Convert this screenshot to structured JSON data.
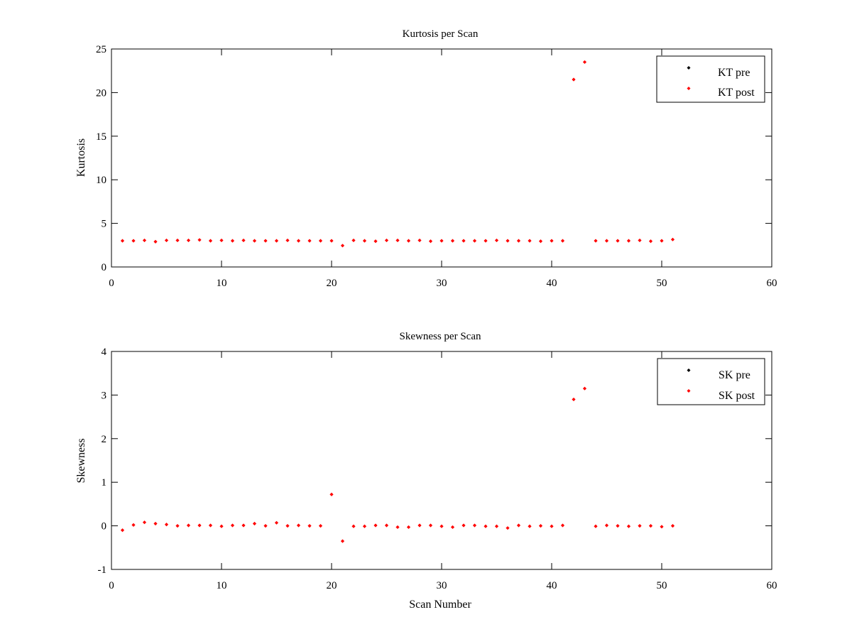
{
  "chart_data": [
    {
      "type": "scatter",
      "title": "Kurtosis per Scan",
      "xlabel": "",
      "ylabel": "Kurtosis",
      "xlim": [
        0,
        60
      ],
      "ylim": [
        0,
        25
      ],
      "xticks": [
        0,
        10,
        20,
        30,
        40,
        50,
        60
      ],
      "yticks": [
        0,
        5,
        10,
        15,
        20,
        25
      ],
      "grid": false,
      "legend_position": "top-right",
      "series": [
        {
          "name": "KT pre",
          "color": "#000000",
          "x": [],
          "y": []
        },
        {
          "name": "KT post",
          "color": "#ff0000",
          "x": [
            1,
            2,
            3,
            4,
            5,
            6,
            7,
            8,
            9,
            10,
            11,
            12,
            13,
            14,
            15,
            16,
            17,
            18,
            19,
            20,
            21,
            22,
            23,
            24,
            25,
            26,
            27,
            28,
            29,
            30,
            31,
            32,
            33,
            34,
            35,
            36,
            37,
            38,
            39,
            40,
            41,
            42,
            43,
            44,
            45,
            46,
            47,
            48,
            49,
            50,
            51
          ],
          "y": [
            3.0,
            3.0,
            3.05,
            2.9,
            3.05,
            3.05,
            3.05,
            3.1,
            3.0,
            3.05,
            3.0,
            3.05,
            3.0,
            3.0,
            3.0,
            3.05,
            3.0,
            3.0,
            3.0,
            3.0,
            2.45,
            3.05,
            3.0,
            2.95,
            3.05,
            3.05,
            3.0,
            3.05,
            2.95,
            3.0,
            3.0,
            3.0,
            3.0,
            3.0,
            3.05,
            3.0,
            3.0,
            3.0,
            2.95,
            3.0,
            3.0,
            21.5,
            23.5,
            3.0,
            3.0,
            3.0,
            3.0,
            3.05,
            2.95,
            3.0,
            3.15
          ]
        }
      ]
    },
    {
      "type": "scatter",
      "title": "Skewness per Scan",
      "xlabel": "Scan Number",
      "ylabel": "Skewness",
      "xlim": [
        0,
        60
      ],
      "ylim": [
        -1,
        4
      ],
      "xticks": [
        0,
        10,
        20,
        30,
        40,
        50,
        60
      ],
      "yticks": [
        -1,
        0,
        1,
        2,
        3,
        4
      ],
      "grid": false,
      "legend_position": "top-right",
      "series": [
        {
          "name": "SK pre",
          "color": "#000000",
          "x": [],
          "y": []
        },
        {
          "name": "SK post",
          "color": "#ff0000",
          "x": [
            1,
            2,
            3,
            4,
            5,
            6,
            7,
            8,
            9,
            10,
            11,
            12,
            13,
            14,
            15,
            16,
            17,
            18,
            19,
            20,
            21,
            22,
            23,
            24,
            25,
            26,
            27,
            28,
            29,
            30,
            31,
            32,
            33,
            34,
            35,
            36,
            37,
            38,
            39,
            40,
            41,
            42,
            43,
            44,
            45,
            46,
            47,
            48,
            49,
            50,
            51
          ],
          "y": [
            -0.1,
            0.02,
            0.08,
            0.05,
            0.03,
            0.0,
            0.01,
            0.01,
            0.01,
            -0.01,
            0.01,
            0.01,
            0.05,
            0.0,
            0.07,
            0.0,
            0.01,
            0.0,
            0.0,
            0.72,
            -0.35,
            -0.01,
            -0.01,
            0.01,
            0.01,
            -0.03,
            -0.03,
            0.01,
            0.01,
            -0.01,
            -0.03,
            0.01,
            0.01,
            -0.01,
            -0.01,
            -0.05,
            0.01,
            -0.01,
            0.0,
            -0.01,
            0.01,
            2.9,
            3.15,
            -0.01,
            0.01,
            0.0,
            -0.01,
            0.0,
            0.0,
            -0.02,
            0.0
          ]
        }
      ]
    }
  ]
}
